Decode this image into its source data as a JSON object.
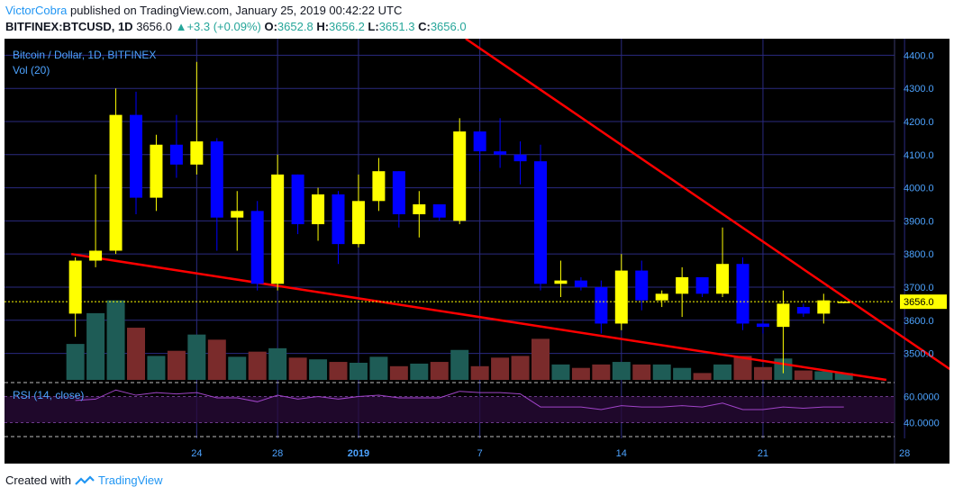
{
  "header": {
    "author": "VictorCobra",
    "published": " published on TradingView.com, January 25, 2019 00:42:22 UTC"
  },
  "ticker": {
    "symbol": "BITFINEX:BTCUSD, 1D",
    "last": "3656.0",
    "change": "+3.3 (+0.09%)",
    "o_label": "O:",
    "o": "3652.8",
    "h_label": "H:",
    "h": "3656.2",
    "l_label": "L:",
    "l": "3651.3",
    "c_label": "C:",
    "c": "3656.0"
  },
  "footer": {
    "created_with": "Created with",
    "brand": "TradingView"
  },
  "colors": {
    "background": "#000000",
    "up_candle": "#ffff00",
    "down_candle": "#0000ff",
    "trendline": "#ff0000",
    "vol_up": "#1e5c56",
    "vol_down": "#7a2b2b",
    "rsi_line": "#a044c8",
    "grid": "#2a2a80",
    "axis_text": "#4da3ff"
  },
  "chart_data": {
    "type": "candlestick",
    "title": "Bitcoin / Dollar, 1D, BITFINEX",
    "volume_label": "Vol (20)",
    "rsi_label": "RSI (14, close)",
    "price_axis": {
      "ylim": [
        3420,
        4450
      ],
      "ticks": [
        3500,
        3600,
        3700,
        3800,
        3900,
        4000,
        4100,
        4200,
        4300,
        4400
      ],
      "labels": [
        "3500.0",
        "3600.0",
        "3700.0",
        "3800.0",
        "3900.0",
        "4000.0",
        "4100.0",
        "4200.0",
        "4300.0",
        "4400.0"
      ]
    },
    "rsi_axis": {
      "ylim": [
        30,
        70
      ],
      "ticks": [
        40,
        60
      ],
      "labels": [
        "40.0000",
        "60.0000"
      ]
    },
    "last_price_label": "3656.0",
    "x_ticks": [
      "24",
      "28",
      "2019",
      "7",
      "14",
      "21",
      "28"
    ],
    "x_tick_days": [
      3,
      7,
      11,
      17,
      24,
      31,
      38
    ],
    "candles": [
      {
        "day": -3,
        "o": 3620,
        "h": 3790,
        "l": 3550,
        "c": 3780
      },
      {
        "day": -2,
        "o": 3780,
        "h": 4040,
        "l": 3760,
        "c": 3810
      },
      {
        "day": -1,
        "o": 3810,
        "h": 4300,
        "l": 3800,
        "c": 4220
      },
      {
        "day": 0,
        "o": 4220,
        "h": 4290,
        "l": 3920,
        "c": 3970
      },
      {
        "day": 1,
        "o": 3970,
        "h": 4160,
        "l": 3930,
        "c": 4130
      },
      {
        "day": 2,
        "o": 4130,
        "h": 4220,
        "l": 4030,
        "c": 4070
      },
      {
        "day": 3,
        "o": 4070,
        "h": 4380,
        "l": 4040,
        "c": 4140
      },
      {
        "day": 4,
        "o": 4140,
        "h": 4150,
        "l": 3810,
        "c": 3910
      },
      {
        "day": 5,
        "o": 3910,
        "h": 3990,
        "l": 3810,
        "c": 3930
      },
      {
        "day": 6,
        "o": 3930,
        "h": 3960,
        "l": 3690,
        "c": 3710
      },
      {
        "day": 7,
        "o": 3710,
        "h": 4100,
        "l": 3690,
        "c": 4040
      },
      {
        "day": 8,
        "o": 4040,
        "h": 4040,
        "l": 3860,
        "c": 3890
      },
      {
        "day": 9,
        "o": 3890,
        "h": 4000,
        "l": 3840,
        "c": 3980
      },
      {
        "day": 10,
        "o": 3980,
        "h": 3990,
        "l": 3770,
        "c": 3830
      },
      {
        "day": 11,
        "o": 3830,
        "h": 4040,
        "l": 3820,
        "c": 3960
      },
      {
        "day": 12,
        "o": 3960,
        "h": 4090,
        "l": 3930,
        "c": 4050
      },
      {
        "day": 13,
        "o": 4050,
        "h": 4050,
        "l": 3880,
        "c": 3920
      },
      {
        "day": 14,
        "o": 3920,
        "h": 3990,
        "l": 3850,
        "c": 3950
      },
      {
        "day": 15,
        "o": 3950,
        "h": 3950,
        "l": 3900,
        "c": 3910
      },
      {
        "day": 16,
        "o": 3900,
        "h": 4210,
        "l": 3890,
        "c": 4170
      },
      {
        "day": 17,
        "o": 4170,
        "h": 4170,
        "l": 4050,
        "c": 4110
      },
      {
        "day": 18,
        "o": 4110,
        "h": 4210,
        "l": 4060,
        "c": 4100
      },
      {
        "day": 19,
        "o": 4100,
        "h": 4140,
        "l": 4010,
        "c": 4080
      },
      {
        "day": 20,
        "o": 4080,
        "h": 4130,
        "l": 3690,
        "c": 3710
      },
      {
        "day": 21,
        "o": 3710,
        "h": 3780,
        "l": 3670,
        "c": 3720
      },
      {
        "day": 22,
        "o": 3720,
        "h": 3730,
        "l": 3690,
        "c": 3700
      },
      {
        "day": 23,
        "o": 3700,
        "h": 3720,
        "l": 3560,
        "c": 3590
      },
      {
        "day": 24,
        "o": 3590,
        "h": 3800,
        "l": 3570,
        "c": 3750
      },
      {
        "day": 25,
        "o": 3750,
        "h": 3780,
        "l": 3630,
        "c": 3660
      },
      {
        "day": 26,
        "o": 3660,
        "h": 3690,
        "l": 3640,
        "c": 3680
      },
      {
        "day": 27,
        "o": 3680,
        "h": 3760,
        "l": 3610,
        "c": 3730
      },
      {
        "day": 28,
        "o": 3730,
        "h": 3730,
        "l": 3670,
        "c": 3680
      },
      {
        "day": 29,
        "o": 3680,
        "h": 3880,
        "l": 3670,
        "c": 3770
      },
      {
        "day": 30,
        "o": 3770,
        "h": 3790,
        "l": 3570,
        "c": 3590
      },
      {
        "day": 31,
        "o": 3590,
        "h": 3600,
        "l": 3560,
        "c": 3580
      },
      {
        "day": 32,
        "o": 3580,
        "h": 3690,
        "l": 3440,
        "c": 3650
      },
      {
        "day": 33,
        "o": 3640,
        "h": 3650,
        "l": 3610,
        "c": 3620
      },
      {
        "day": 34,
        "o": 3620,
        "h": 3680,
        "l": 3590,
        "c": 3660
      },
      {
        "day": 35,
        "o": 3653,
        "h": 3656,
        "l": 3651,
        "c": 3656
      }
    ],
    "volume": [
      {
        "day": -3,
        "v": 0.42,
        "up": true
      },
      {
        "day": -2,
        "v": 0.78,
        "up": true
      },
      {
        "day": -1,
        "v": 0.93,
        "up": true
      },
      {
        "day": 0,
        "v": 0.61,
        "up": false
      },
      {
        "day": 1,
        "v": 0.28,
        "up": true
      },
      {
        "day": 2,
        "v": 0.34,
        "up": false
      },
      {
        "day": 3,
        "v": 0.53,
        "up": true
      },
      {
        "day": 4,
        "v": 0.47,
        "up": false
      },
      {
        "day": 5,
        "v": 0.27,
        "up": true
      },
      {
        "day": 6,
        "v": 0.33,
        "up": false
      },
      {
        "day": 7,
        "v": 0.37,
        "up": true
      },
      {
        "day": 8,
        "v": 0.26,
        "up": false
      },
      {
        "day": 9,
        "v": 0.24,
        "up": true
      },
      {
        "day": 10,
        "v": 0.21,
        "up": false
      },
      {
        "day": 11,
        "v": 0.2,
        "up": true
      },
      {
        "day": 12,
        "v": 0.27,
        "up": true
      },
      {
        "day": 13,
        "v": 0.16,
        "up": false
      },
      {
        "day": 14,
        "v": 0.19,
        "up": true
      },
      {
        "day": 15,
        "v": 0.21,
        "up": false
      },
      {
        "day": 16,
        "v": 0.35,
        "up": true
      },
      {
        "day": 17,
        "v": 0.16,
        "up": false
      },
      {
        "day": 18,
        "v": 0.26,
        "up": false
      },
      {
        "day": 19,
        "v": 0.28,
        "up": false
      },
      {
        "day": 20,
        "v": 0.48,
        "up": false
      },
      {
        "day": 21,
        "v": 0.18,
        "up": true
      },
      {
        "day": 22,
        "v": 0.14,
        "up": false
      },
      {
        "day": 23,
        "v": 0.18,
        "up": false
      },
      {
        "day": 24,
        "v": 0.21,
        "up": true
      },
      {
        "day": 25,
        "v": 0.18,
        "up": false
      },
      {
        "day": 26,
        "v": 0.18,
        "up": true
      },
      {
        "day": 27,
        "v": 0.14,
        "up": true
      },
      {
        "day": 28,
        "v": 0.08,
        "up": false
      },
      {
        "day": 29,
        "v": 0.18,
        "up": true
      },
      {
        "day": 30,
        "v": 0.28,
        "up": false
      },
      {
        "day": 31,
        "v": 0.15,
        "up": false
      },
      {
        "day": 32,
        "v": 0.25,
        "up": true
      },
      {
        "day": 33,
        "v": 0.11,
        "up": false
      },
      {
        "day": 34,
        "v": 0.1,
        "up": true
      },
      {
        "day": 35,
        "v": 0.08,
        "up": true
      }
    ],
    "rsi": [
      {
        "day": -3,
        "v": 57
      },
      {
        "day": -2,
        "v": 58
      },
      {
        "day": -1,
        "v": 65
      },
      {
        "day": 0,
        "v": 61
      },
      {
        "day": 1,
        "v": 63
      },
      {
        "day": 2,
        "v": 62
      },
      {
        "day": 3,
        "v": 63
      },
      {
        "day": 4,
        "v": 59
      },
      {
        "day": 5,
        "v": 59
      },
      {
        "day": 6,
        "v": 56
      },
      {
        "day": 7,
        "v": 61
      },
      {
        "day": 8,
        "v": 58
      },
      {
        "day": 9,
        "v": 60
      },
      {
        "day": 10,
        "v": 58
      },
      {
        "day": 11,
        "v": 60
      },
      {
        "day": 12,
        "v": 61
      },
      {
        "day": 13,
        "v": 59
      },
      {
        "day": 14,
        "v": 59
      },
      {
        "day": 15,
        "v": 59
      },
      {
        "day": 16,
        "v": 64
      },
      {
        "day": 17,
        "v": 63
      },
      {
        "day": 18,
        "v": 63
      },
      {
        "day": 19,
        "v": 62
      },
      {
        "day": 20,
        "v": 52
      },
      {
        "day": 21,
        "v": 52
      },
      {
        "day": 22,
        "v": 52
      },
      {
        "day": 23,
        "v": 50
      },
      {
        "day": 24,
        "v": 53
      },
      {
        "day": 25,
        "v": 52
      },
      {
        "day": 26,
        "v": 52
      },
      {
        "day": 27,
        "v": 53
      },
      {
        "day": 28,
        "v": 52
      },
      {
        "day": 29,
        "v": 55
      },
      {
        "day": 30,
        "v": 50
      },
      {
        "day": 31,
        "v": 50
      },
      {
        "day": 32,
        "v": 52
      },
      {
        "day": 33,
        "v": 51
      },
      {
        "day": 34,
        "v": 52
      },
      {
        "day": 35,
        "v": 52
      }
    ],
    "trendlines": [
      {
        "name": "resistance",
        "from": {
          "day": 16.3,
          "price": 4450
        },
        "to": {
          "day": 41.5,
          "price": 3400
        }
      },
      {
        "name": "support",
        "from": {
          "day": -3.2,
          "price": 3800
        },
        "to": {
          "day": 37.1,
          "price": 3420
        }
      }
    ]
  }
}
